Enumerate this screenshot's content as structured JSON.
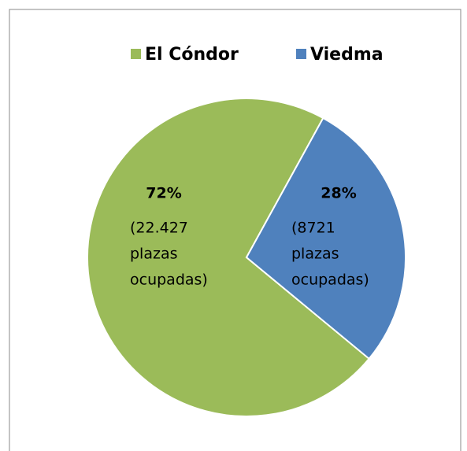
{
  "chart_data": {
    "type": "pie",
    "categories": [
      "El Cóndor",
      "Viedma"
    ],
    "values": [
      72,
      28
    ],
    "value_labels": [
      "72%",
      "28%"
    ],
    "details": [
      [
        "(22.427",
        "plazas",
        "ocupadas)"
      ],
      [
        "(8721",
        "plazas",
        "ocupadas)"
      ]
    ],
    "colors": [
      "#9bbb59",
      "#4f81bd"
    ],
    "legend": "top"
  }
}
